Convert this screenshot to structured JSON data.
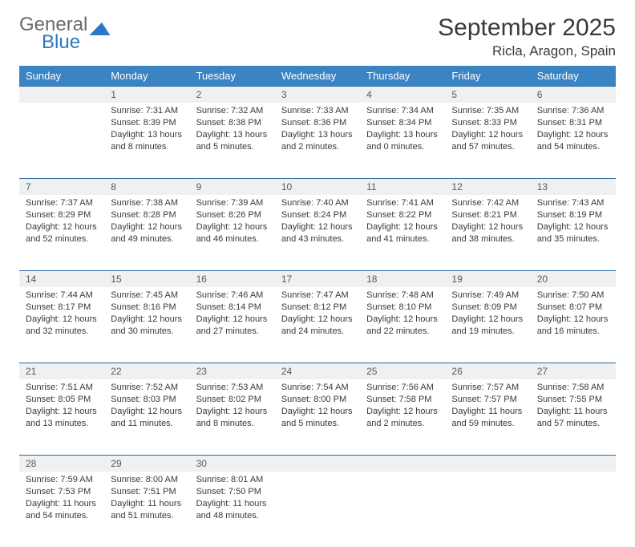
{
  "logo": {
    "text1": "General",
    "text2": "Blue"
  },
  "title": {
    "month": "September 2025",
    "location": "Ricla, Aragon, Spain"
  },
  "headers": [
    "Sunday",
    "Monday",
    "Tuesday",
    "Wednesday",
    "Thursday",
    "Friday",
    "Saturday"
  ],
  "colors": {
    "header_bg": "#3b84c4",
    "daynum_bg": "#eef0f1",
    "border": "#2d6aa3",
    "accent": "#2b79c2"
  },
  "weeks": [
    [
      null,
      {
        "n": "1",
        "sr": "Sunrise: 7:31 AM",
        "ss": "Sunset: 8:39 PM",
        "d1": "Daylight: 13 hours",
        "d2": "and 8 minutes."
      },
      {
        "n": "2",
        "sr": "Sunrise: 7:32 AM",
        "ss": "Sunset: 8:38 PM",
        "d1": "Daylight: 13 hours",
        "d2": "and 5 minutes."
      },
      {
        "n": "3",
        "sr": "Sunrise: 7:33 AM",
        "ss": "Sunset: 8:36 PM",
        "d1": "Daylight: 13 hours",
        "d2": "and 2 minutes."
      },
      {
        "n": "4",
        "sr": "Sunrise: 7:34 AM",
        "ss": "Sunset: 8:34 PM",
        "d1": "Daylight: 13 hours",
        "d2": "and 0 minutes."
      },
      {
        "n": "5",
        "sr": "Sunrise: 7:35 AM",
        "ss": "Sunset: 8:33 PM",
        "d1": "Daylight: 12 hours",
        "d2": "and 57 minutes."
      },
      {
        "n": "6",
        "sr": "Sunrise: 7:36 AM",
        "ss": "Sunset: 8:31 PM",
        "d1": "Daylight: 12 hours",
        "d2": "and 54 minutes."
      }
    ],
    [
      {
        "n": "7",
        "sr": "Sunrise: 7:37 AM",
        "ss": "Sunset: 8:29 PM",
        "d1": "Daylight: 12 hours",
        "d2": "and 52 minutes."
      },
      {
        "n": "8",
        "sr": "Sunrise: 7:38 AM",
        "ss": "Sunset: 8:28 PM",
        "d1": "Daylight: 12 hours",
        "d2": "and 49 minutes."
      },
      {
        "n": "9",
        "sr": "Sunrise: 7:39 AM",
        "ss": "Sunset: 8:26 PM",
        "d1": "Daylight: 12 hours",
        "d2": "and 46 minutes."
      },
      {
        "n": "10",
        "sr": "Sunrise: 7:40 AM",
        "ss": "Sunset: 8:24 PM",
        "d1": "Daylight: 12 hours",
        "d2": "and 43 minutes."
      },
      {
        "n": "11",
        "sr": "Sunrise: 7:41 AM",
        "ss": "Sunset: 8:22 PM",
        "d1": "Daylight: 12 hours",
        "d2": "and 41 minutes."
      },
      {
        "n": "12",
        "sr": "Sunrise: 7:42 AM",
        "ss": "Sunset: 8:21 PM",
        "d1": "Daylight: 12 hours",
        "d2": "and 38 minutes."
      },
      {
        "n": "13",
        "sr": "Sunrise: 7:43 AM",
        "ss": "Sunset: 8:19 PM",
        "d1": "Daylight: 12 hours",
        "d2": "and 35 minutes."
      }
    ],
    [
      {
        "n": "14",
        "sr": "Sunrise: 7:44 AM",
        "ss": "Sunset: 8:17 PM",
        "d1": "Daylight: 12 hours",
        "d2": "and 32 minutes."
      },
      {
        "n": "15",
        "sr": "Sunrise: 7:45 AM",
        "ss": "Sunset: 8:16 PM",
        "d1": "Daylight: 12 hours",
        "d2": "and 30 minutes."
      },
      {
        "n": "16",
        "sr": "Sunrise: 7:46 AM",
        "ss": "Sunset: 8:14 PM",
        "d1": "Daylight: 12 hours",
        "d2": "and 27 minutes."
      },
      {
        "n": "17",
        "sr": "Sunrise: 7:47 AM",
        "ss": "Sunset: 8:12 PM",
        "d1": "Daylight: 12 hours",
        "d2": "and 24 minutes."
      },
      {
        "n": "18",
        "sr": "Sunrise: 7:48 AM",
        "ss": "Sunset: 8:10 PM",
        "d1": "Daylight: 12 hours",
        "d2": "and 22 minutes."
      },
      {
        "n": "19",
        "sr": "Sunrise: 7:49 AM",
        "ss": "Sunset: 8:09 PM",
        "d1": "Daylight: 12 hours",
        "d2": "and 19 minutes."
      },
      {
        "n": "20",
        "sr": "Sunrise: 7:50 AM",
        "ss": "Sunset: 8:07 PM",
        "d1": "Daylight: 12 hours",
        "d2": "and 16 minutes."
      }
    ],
    [
      {
        "n": "21",
        "sr": "Sunrise: 7:51 AM",
        "ss": "Sunset: 8:05 PM",
        "d1": "Daylight: 12 hours",
        "d2": "and 13 minutes."
      },
      {
        "n": "22",
        "sr": "Sunrise: 7:52 AM",
        "ss": "Sunset: 8:03 PM",
        "d1": "Daylight: 12 hours",
        "d2": "and 11 minutes."
      },
      {
        "n": "23",
        "sr": "Sunrise: 7:53 AM",
        "ss": "Sunset: 8:02 PM",
        "d1": "Daylight: 12 hours",
        "d2": "and 8 minutes."
      },
      {
        "n": "24",
        "sr": "Sunrise: 7:54 AM",
        "ss": "Sunset: 8:00 PM",
        "d1": "Daylight: 12 hours",
        "d2": "and 5 minutes."
      },
      {
        "n": "25",
        "sr": "Sunrise: 7:56 AM",
        "ss": "Sunset: 7:58 PM",
        "d1": "Daylight: 12 hours",
        "d2": "and 2 minutes."
      },
      {
        "n": "26",
        "sr": "Sunrise: 7:57 AM",
        "ss": "Sunset: 7:57 PM",
        "d1": "Daylight: 11 hours",
        "d2": "and 59 minutes."
      },
      {
        "n": "27",
        "sr": "Sunrise: 7:58 AM",
        "ss": "Sunset: 7:55 PM",
        "d1": "Daylight: 11 hours",
        "d2": "and 57 minutes."
      }
    ],
    [
      {
        "n": "28",
        "sr": "Sunrise: 7:59 AM",
        "ss": "Sunset: 7:53 PM",
        "d1": "Daylight: 11 hours",
        "d2": "and 54 minutes."
      },
      {
        "n": "29",
        "sr": "Sunrise: 8:00 AM",
        "ss": "Sunset: 7:51 PM",
        "d1": "Daylight: 11 hours",
        "d2": "and 51 minutes."
      },
      {
        "n": "30",
        "sr": "Sunrise: 8:01 AM",
        "ss": "Sunset: 7:50 PM",
        "d1": "Daylight: 11 hours",
        "d2": "and 48 minutes."
      },
      null,
      null,
      null,
      null
    ]
  ]
}
